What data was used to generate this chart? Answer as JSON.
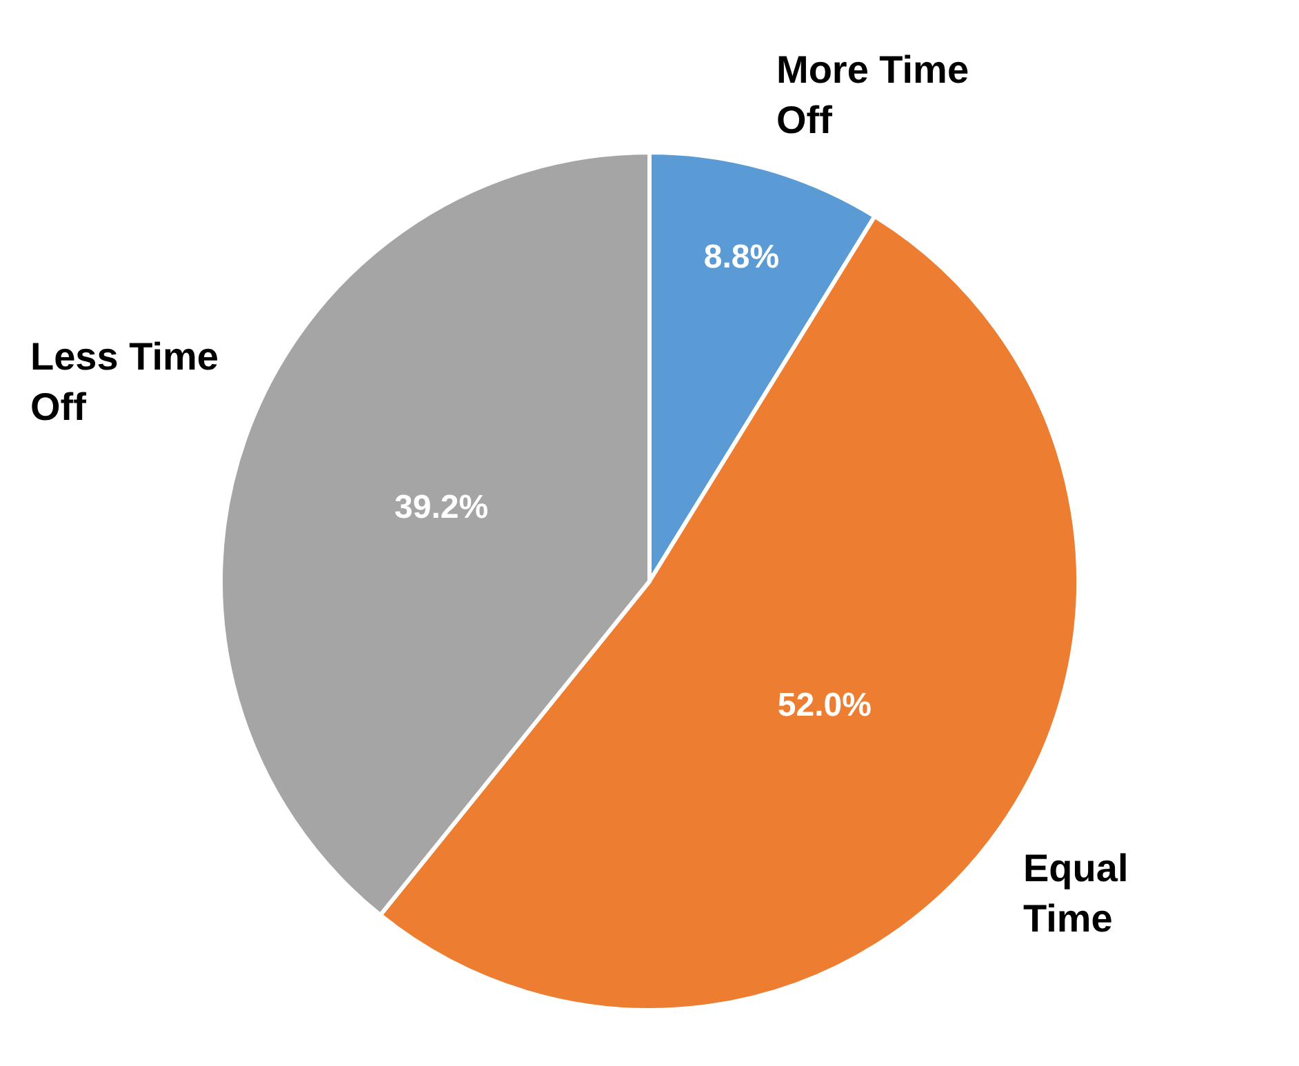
{
  "chart_data": {
    "type": "pie",
    "categories": [
      "More Time Off",
      "Equal Time",
      "Less Time Off"
    ],
    "values": [
      8.8,
      52.0,
      39.2
    ],
    "colors": [
      "#5b9bd5",
      "#ed7d31",
      "#a5a5a5"
    ],
    "value_labels": [
      "8.8%",
      "52.0%",
      "39.2%"
    ]
  }
}
